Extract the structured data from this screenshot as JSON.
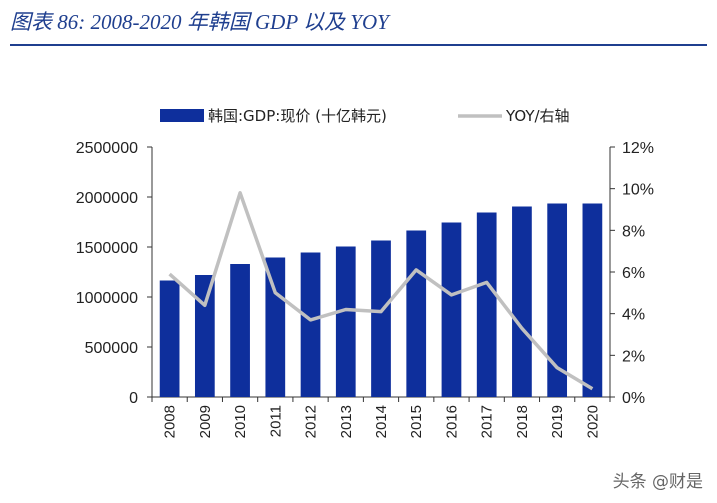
{
  "page": {
    "title": "图表 86: 2008-2020 年韩国 GDP 以及 YOY",
    "watermark": "头条 @财是"
  },
  "colors": {
    "bar": "#0e2f9c",
    "line": "#c0c0c0",
    "title": "#1f3f8f",
    "axis": "#333333"
  },
  "chart_data": {
    "type": "bar",
    "title": "",
    "categories": [
      "2008",
      "2009",
      "2010",
      "2011",
      "2012",
      "2013",
      "2014",
      "2015",
      "2016",
      "2017",
      "2018",
      "2019",
      "2020"
    ],
    "series": [
      {
        "name": "韩国:GDP:现价 (十亿韩元)",
        "type": "bar",
        "axis": "left",
        "values": [
          1165000,
          1220000,
          1330000,
          1395000,
          1445000,
          1505000,
          1565000,
          1665000,
          1745000,
          1845000,
          1905000,
          1935000,
          1935000
        ]
      },
      {
        "name": "YOY/右轴",
        "type": "line",
        "axis": "right",
        "values": [
          5.9,
          4.4,
          9.8,
          5.0,
          3.7,
          4.2,
          4.1,
          6.1,
          4.9,
          5.5,
          3.3,
          1.4,
          0.4
        ]
      }
    ],
    "ylim": [
      0,
      2500000
    ],
    "y_ticks": [
      "0",
      "500000",
      "1000000",
      "1500000",
      "2000000",
      "2500000"
    ],
    "y2lim": [
      0,
      12
    ],
    "y2_ticks": [
      "0%",
      "2%",
      "4%",
      "6%",
      "8%",
      "10%",
      "12%"
    ],
    "legend_position": "top"
  }
}
